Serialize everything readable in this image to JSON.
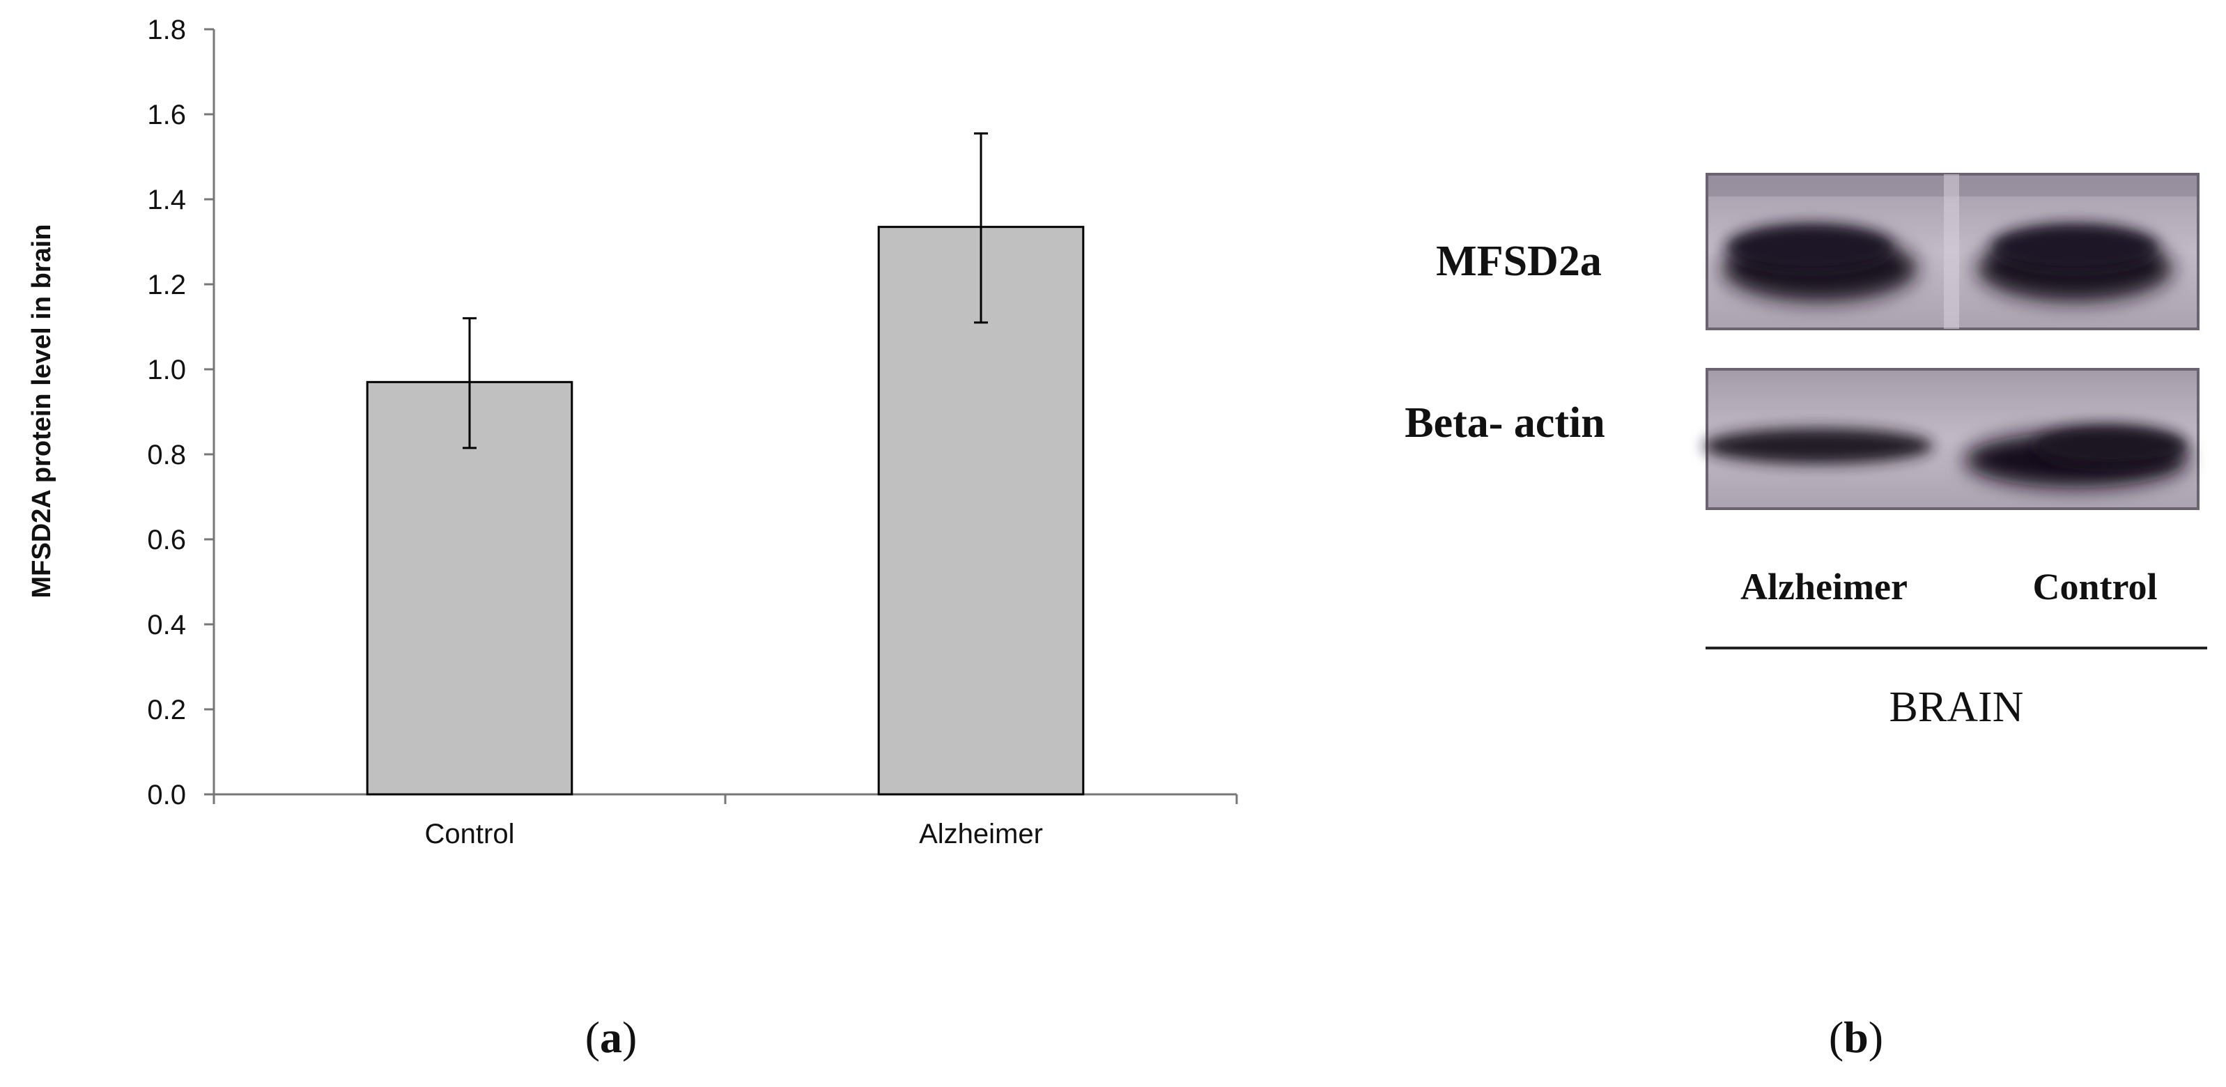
{
  "panel_a": {
    "label_open": "(",
    "label_letter": "a",
    "label_close": ")"
  },
  "panel_b": {
    "label_open": "(",
    "label_letter": "b",
    "label_close": ")",
    "blot_rows": [
      "MFSD2a",
      "Beta- actin"
    ],
    "lane_labels": [
      "Alzheimer",
      "Control"
    ],
    "group_label": "BRAIN"
  },
  "chart_data": {
    "type": "bar",
    "categories": [
      "Control",
      "Alzheimer"
    ],
    "values": [
      0.97,
      1.335
    ],
    "error_low": [
      0.815,
      1.11
    ],
    "error_high": [
      1.12,
      1.555
    ],
    "ylabel": "MFSD2A protein level in brain",
    "xlabel": "",
    "ylim": [
      0,
      1.8
    ],
    "yticks": [
      "0.0",
      "0.2",
      "0.4",
      "0.6",
      "0.8",
      "1.0",
      "1.2",
      "1.4",
      "1.6",
      "1.8"
    ],
    "grid": false,
    "bar_color": "#c0c0c0"
  }
}
